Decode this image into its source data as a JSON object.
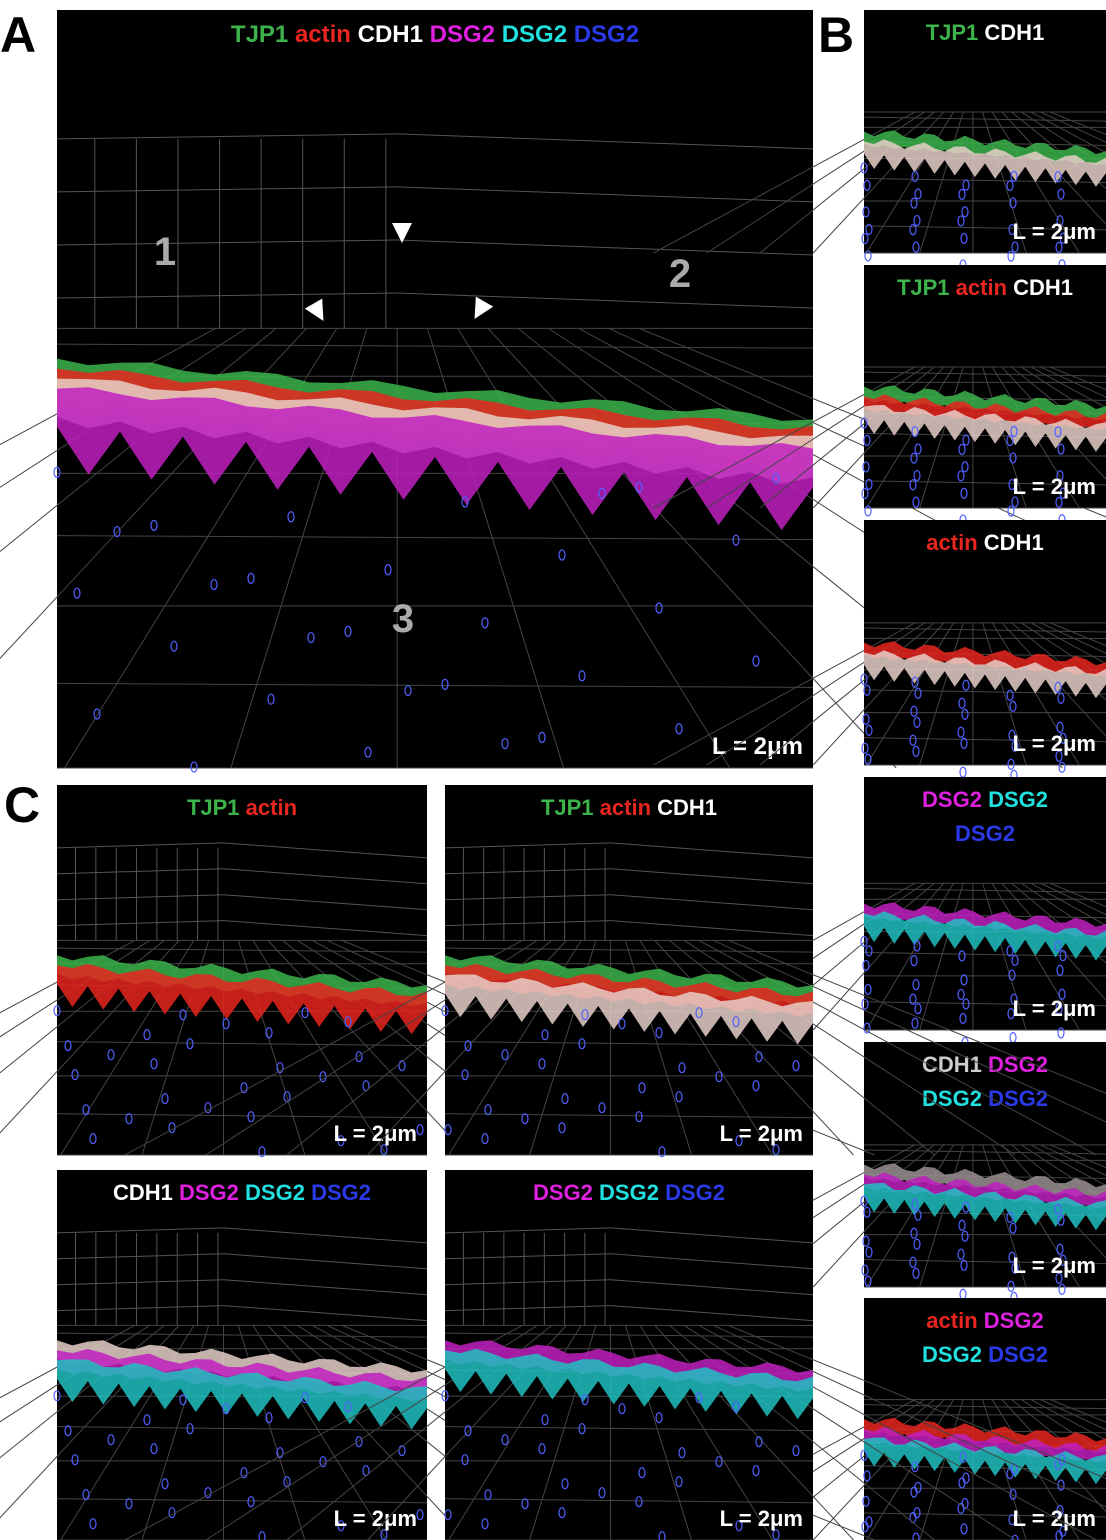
{
  "panel_letters": [
    "A",
    "B",
    "C"
  ],
  "region_numbers": [
    "1",
    "2",
    "3"
  ],
  "panels": [
    {
      "label_lines": [
        [
          {
            "text": "TJP1",
            "color": "#3cb44b"
          },
          {
            "text": "actin",
            "color": "#e8251e"
          },
          {
            "text": "CDH1",
            "color": "#ffffff"
          },
          {
            "text": "DSG2",
            "color": "#e020e0"
          },
          {
            "text": "DSG2",
            "color": "#20e0e0"
          },
          {
            "text": "DSG2",
            "color": "#2a3ae8"
          }
        ]
      ],
      "scale": "L = 2μm"
    },
    {
      "label_lines": [
        [
          {
            "text": "TJP1",
            "color": "#3cb44b"
          },
          {
            "text": "CDH1",
            "color": "#ffffff"
          }
        ]
      ],
      "scale": "L = 2μm"
    },
    {
      "label_lines": [
        [
          {
            "text": "TJP1",
            "color": "#3cb44b"
          },
          {
            "text": "actin",
            "color": "#e8251e"
          },
          {
            "text": "CDH1",
            "color": "#ffffff"
          }
        ]
      ],
      "scale": "L = 2μm"
    },
    {
      "label_lines": [
        [
          {
            "text": "actin",
            "color": "#e8251e"
          },
          {
            "text": "CDH1",
            "color": "#ffffff"
          }
        ]
      ],
      "scale": "L = 2μm"
    },
    {
      "label_lines": [
        [
          {
            "text": "DSG2",
            "color": "#e020e0"
          },
          {
            "text": "DSG2",
            "color": "#20e0e0"
          }
        ],
        [
          {
            "text": "DSG2",
            "color": "#2a3ae8"
          }
        ]
      ],
      "scale": "L = 2μm"
    },
    {
      "label_lines": [
        [
          {
            "text": "CDH1",
            "color": "#cccccc"
          },
          {
            "text": "DSG2",
            "color": "#e020e0"
          }
        ],
        [
          {
            "text": "DSG2",
            "color": "#20e0e0"
          },
          {
            "text": "DSG2",
            "color": "#2a3ae8"
          }
        ]
      ],
      "scale": "L = 2μm"
    },
    {
      "label_lines": [
        [
          {
            "text": "actin",
            "color": "#e8251e"
          },
          {
            "text": "DSG2",
            "color": "#e020e0"
          }
        ],
        [
          {
            "text": "DSG2",
            "color": "#20e0e0"
          },
          {
            "text": "DSG2",
            "color": "#2a3ae8"
          }
        ]
      ],
      "scale": "L = 2μm"
    },
    {
      "label_lines": [
        [
          {
            "text": "TJP1",
            "color": "#3cb44b"
          },
          {
            "text": "actin",
            "color": "#e8251e"
          }
        ]
      ],
      "scale": "L = 2μm"
    },
    {
      "label_lines": [
        [
          {
            "text": "TJP1",
            "color": "#3cb44b"
          },
          {
            "text": "actin",
            "color": "#e8251e"
          },
          {
            "text": "CDH1",
            "color": "#ffffff"
          }
        ]
      ],
      "scale": "L = 2μm"
    },
    {
      "label_lines": [
        [
          {
            "text": "CDH1",
            "color": "#ffffff"
          },
          {
            "text": "DSG2",
            "color": "#e020e0"
          },
          {
            "text": "DSG2",
            "color": "#20e0e0"
          },
          {
            "text": "DSG2",
            "color": "#2a3ae8"
          }
        ]
      ],
      "scale": "L = 2μm"
    },
    {
      "label_lines": [
        [
          {
            "text": "DSG2",
            "color": "#e020e0"
          },
          {
            "text": "DSG2",
            "color": "#20e0e0"
          },
          {
            "text": "DSG2",
            "color": "#2a3ae8"
          }
        ]
      ],
      "scale": "L = 2μm"
    }
  ]
}
